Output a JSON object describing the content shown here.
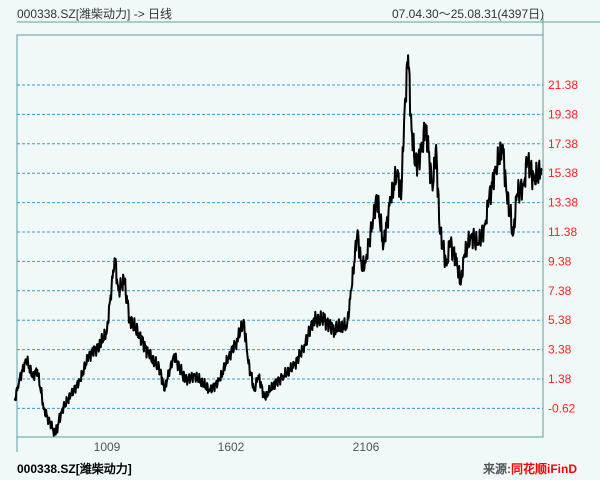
{
  "header": {
    "title": "000338.SZ[潍柴动力] -> 日线",
    "range": "07.04.30～25.08.31(4397日)"
  },
  "footer": {
    "stock": "000338.SZ[潍柴动力]",
    "source_label": "来源:",
    "source_brand": "同花顺iFinD"
  },
  "colors": {
    "line": "#000000",
    "grid": "#3a9ad0",
    "frame": "#5f9ea0",
    "ytick": "#ff2020",
    "brand": "#ff0000",
    "background": "#f0f8f8"
  },
  "chart_data": {
    "type": "line",
    "title": "",
    "xlabel": "",
    "ylabel": "",
    "ylim": [
      -2.6,
      24.5
    ],
    "grid": true,
    "yticks": [
      "-0.62",
      "1.38",
      "3.38",
      "5.38",
      "7.38",
      "9.38",
      "11.38",
      "13.38",
      "15.38",
      "17.38",
      "19.38",
      "21.38"
    ],
    "xticks": [
      {
        "label": "1009",
        "date": "2010-09"
      },
      {
        "label": "1602",
        "date": "2016-02"
      },
      {
        "label": "2106",
        "date": "2021-06"
      }
    ],
    "x": [
      "2007-04",
      "2007-06",
      "2007-09",
      "2007-12",
      "2008-02",
      "2008-05",
      "2008-10",
      "2009-01",
      "2009-05",
      "2009-09",
      "2010-01",
      "2010-06",
      "2010-09",
      "2011-01",
      "2011-03",
      "2011-06",
      "2011-09",
      "2012-02",
      "2012-07",
      "2013-01",
      "2013-03",
      "2013-08",
      "2014-02",
      "2014-07",
      "2015-03",
      "2015-08",
      "2016-01",
      "2016-05",
      "2016-08",
      "2016-10",
      "2017-01",
      "2017-03",
      "2017-06",
      "2017-10",
      "2018-03",
      "2018-08",
      "2019-01",
      "2019-05",
      "2019-10",
      "2020-03",
      "2020-09",
      "2020-11",
      "2021-02",
      "2021-04",
      "2021-06",
      "2021-08",
      "2021-09",
      "2021-11",
      "2022-01",
      "2022-03",
      "2022-04",
      "2022-05",
      "2022-06",
      "2022-07",
      "2022-08",
      "2022-10",
      "2022-11",
      "2023-01",
      "2023-02",
      "2023-03",
      "2023-05",
      "2023-06",
      "2023-08",
      "2023-09",
      "2023-10",
      "2023-12",
      "2024-02",
      "2024-04",
      "2024-05",
      "2024-07",
      "2024-09",
      "2024-10",
      "2024-12",
      "2025-01",
      "2025-03",
      "2025-04",
      "2025-06",
      "2025-08"
    ],
    "values": [
      -0.05,
      1.3,
      2.7,
      1.6,
      2.0,
      -0.7,
      -2.4,
      -0.7,
      0.3,
      1.3,
      3.0,
      3.7,
      4.7,
      9.6,
      7.4,
      8.1,
      5.4,
      4.4,
      3.0,
      2.0,
      0.6,
      3.0,
      1.3,
      1.6,
      0.6,
      1.3,
      3.0,
      4.0,
      5.4,
      2.7,
      0.6,
      1.6,
      0.1,
      0.97,
      1.6,
      2.3,
      3.7,
      5.4,
      5.4,
      4.8,
      5.0,
      7.4,
      11.5,
      8.8,
      9.5,
      12.2,
      13.9,
      10.5,
      13.6,
      15.6,
      13.6,
      19.7,
      23.4,
      18.3,
      15.9,
      17.0,
      18.7,
      14.2,
      17.3,
      11.5,
      9.1,
      10.8,
      9.1,
      7.8,
      9.8,
      11.2,
      10.5,
      11.9,
      13.6,
      15.6,
      17.3,
      14.2,
      11.2,
      13.9,
      14.6,
      16.3,
      14.9,
      15.7
    ]
  }
}
